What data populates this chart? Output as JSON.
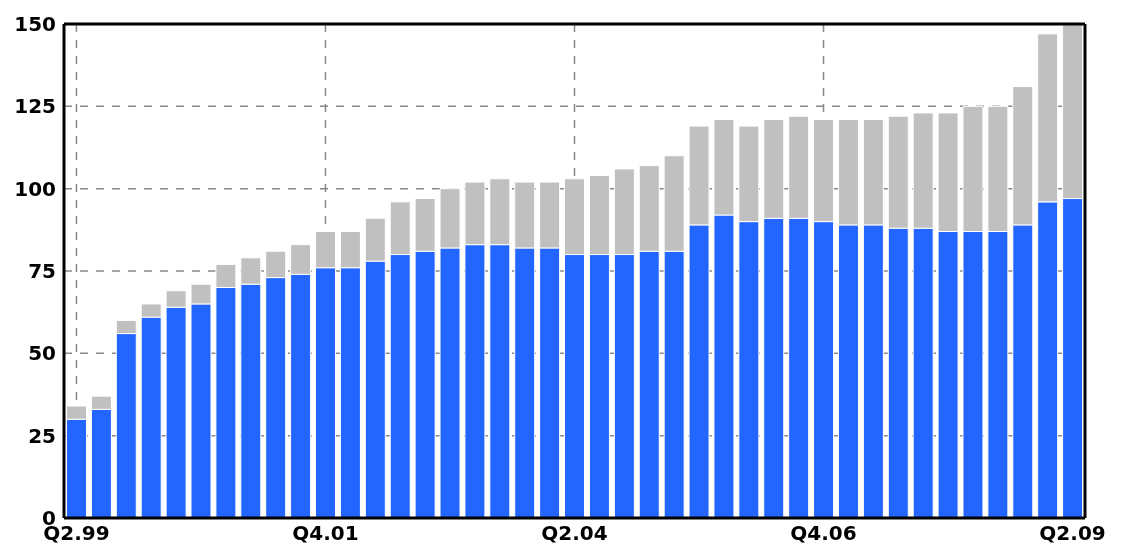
{
  "chart_data": {
    "type": "bar",
    "stacked": true,
    "categories": [
      "Q2.99",
      null,
      null,
      null,
      null,
      null,
      null,
      null,
      null,
      null,
      "Q4.01",
      null,
      null,
      null,
      null,
      null,
      null,
      null,
      null,
      null,
      "Q2.04",
      null,
      null,
      null,
      null,
      null,
      null,
      null,
      null,
      null,
      "Q4.06",
      null,
      null,
      null,
      null,
      null,
      null,
      null,
      null,
      null,
      "Q2.09"
    ],
    "series": [
      {
        "color": "#2266ff",
        "values": [
          30,
          33,
          56,
          61,
          64,
          65,
          70,
          71,
          73,
          74,
          76,
          76,
          78,
          80,
          81,
          82,
          83,
          83,
          82,
          82,
          80,
          80,
          80,
          81,
          81,
          89,
          92,
          90,
          91,
          91,
          90,
          89,
          89,
          88,
          88,
          87,
          87,
          87,
          89,
          96,
          97
        ]
      },
      {
        "color": "#c0c0c0",
        "values": [
          4,
          4,
          4,
          4,
          5,
          6,
          7,
          8,
          8,
          9,
          11,
          11,
          13,
          16,
          16,
          18,
          19,
          20,
          20,
          20,
          23,
          24,
          26,
          26,
          29,
          30,
          29,
          29,
          30,
          31,
          31,
          32,
          32,
          34,
          35,
          36,
          38,
          38,
          42,
          51,
          53
        ]
      }
    ],
    "ylim": [
      0,
      150
    ],
    "yticks": [
      0,
      25,
      50,
      75,
      100,
      125,
      150
    ],
    "grid": true
  }
}
